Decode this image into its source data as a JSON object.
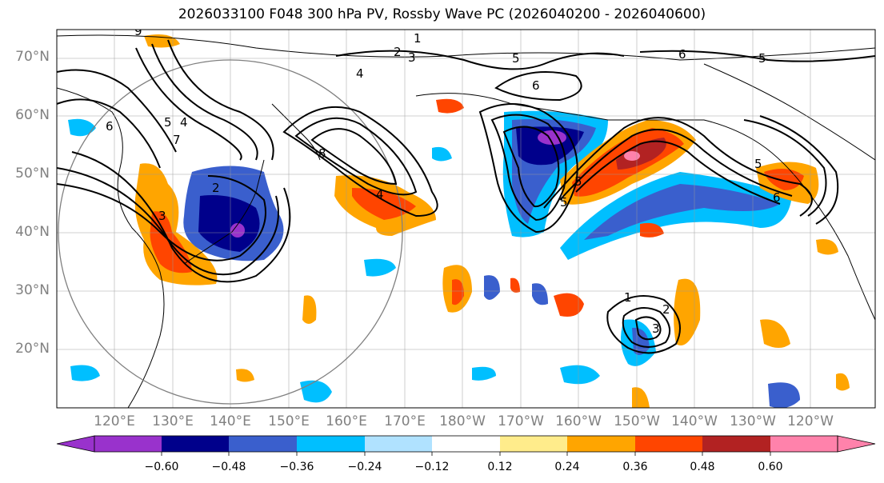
{
  "title": "2026033100 F048 300 hPa PV, Rossby Wave PC (2026040200 - 2026040600)",
  "lat_labels": [
    "70°N",
    "60°N",
    "50°N",
    "40°N",
    "30°N",
    "20°N"
  ],
  "lon_labels": [
    "120°E",
    "130°E",
    "140°E",
    "150°E",
    "160°E",
    "170°E",
    "180°W",
    "170°W",
    "160°W",
    "150°W",
    "140°W",
    "130°W",
    "120°W"
  ],
  "colorbar": {
    "ticks": [
      "−0.60",
      "−0.48",
      "−0.36",
      "−0.24",
      "−0.12",
      "0.12",
      "0.24",
      "0.36",
      "0.48",
      "0.60"
    ],
    "colors": [
      "#9932cc",
      "#00008b",
      "#3a5fcd",
      "#00bfff",
      "#b0e2ff",
      "#ffffff",
      "#ffec8b",
      "#ffa500",
      "#ff4500",
      "#b22222",
      "#ff82ab"
    ]
  },
  "contour_labels": [
    "1",
    "2",
    "3",
    "4",
    "5",
    "6",
    "7",
    "8",
    "9"
  ]
}
